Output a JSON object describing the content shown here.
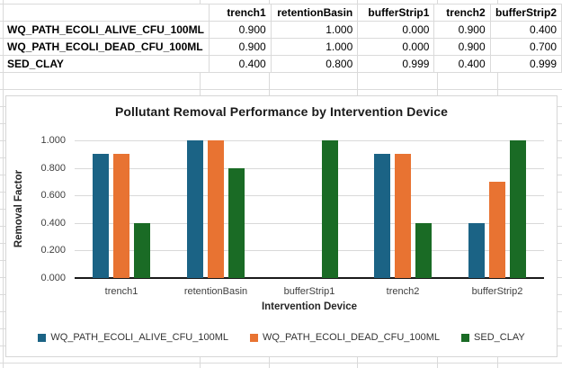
{
  "table": {
    "corner_label": "",
    "columns": [
      "trench1",
      "retentionBasin",
      "bufferStrip1",
      "trench2",
      "bufferStrip2"
    ],
    "rows": [
      {
        "label": "WQ_PATH_ECOLI_ALIVE_CFU_100ML",
        "values": [
          "0.900",
          "1.000",
          "0.000",
          "0.900",
          "0.400"
        ]
      },
      {
        "label": "WQ_PATH_ECOLI_DEAD_CFU_100ML",
        "values": [
          "0.900",
          "1.000",
          "0.000",
          "0.900",
          "0.700"
        ]
      },
      {
        "label": "SED_CLAY",
        "values": [
          "0.400",
          "0.800",
          "0.999",
          "0.400",
          "0.999"
        ]
      }
    ]
  },
  "chart_data": {
    "type": "bar",
    "title": "Pollutant Removal Performance by Intervention Device",
    "xlabel": "Intervention Device",
    "ylabel": "Removal Factor",
    "categories": [
      "trench1",
      "retentionBasin",
      "bufferStrip1",
      "trench2",
      "bufferStrip2"
    ],
    "series": [
      {
        "name": "WQ_PATH_ECOLI_ALIVE_CFU_100ML",
        "color": "#1B6385",
        "values": [
          0.9,
          1.0,
          0.0,
          0.9,
          0.4
        ]
      },
      {
        "name": "WQ_PATH_ECOLI_DEAD_CFU_100ML",
        "color": "#E87332",
        "values": [
          0.9,
          1.0,
          0.0,
          0.9,
          0.7
        ]
      },
      {
        "name": "SED_CLAY",
        "color": "#1A6B25",
        "values": [
          0.4,
          0.8,
          0.999,
          0.4,
          0.999
        ]
      }
    ],
    "ylim": [
      0.0,
      1.0
    ],
    "ytick_step": 0.2,
    "ytick_labels": [
      "0.000",
      "0.200",
      "0.400",
      "0.600",
      "0.800",
      "1.000"
    ],
    "grid": true,
    "legend_position": "bottom"
  },
  "colors": {
    "series_blue": "#1B6385",
    "series_orange": "#E87332",
    "series_green": "#1A6B25",
    "sheet_gridline": "#dadada",
    "chart_gridline": "#d9d9d9",
    "chart_border": "#d6d6d6",
    "axis_line": "#1a1a1a",
    "text_dark": "#262626",
    "text_tick": "#404040"
  }
}
